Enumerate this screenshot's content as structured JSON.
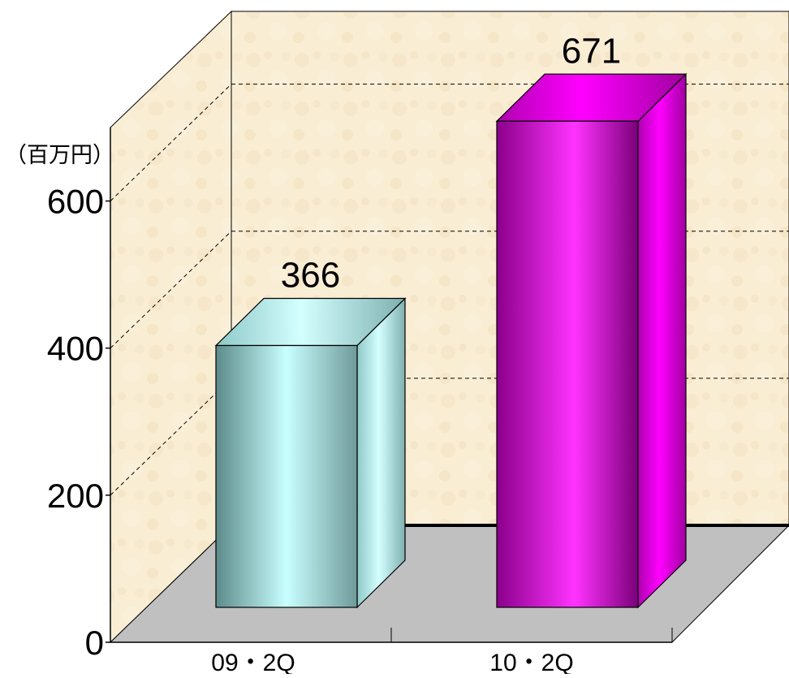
{
  "chart_data": {
    "type": "bar",
    "variant": "3d-column",
    "unit_label": "（百万円）",
    "categories": [
      "09・2Q",
      "10・2Q"
    ],
    "values": [
      366,
      671
    ],
    "data_labels": [
      "366",
      "671"
    ],
    "yticks": [
      "0",
      "200",
      "400",
      "600"
    ],
    "ylim": [
      0,
      700
    ],
    "grid": true,
    "legend": "none",
    "colors": {
      "bar_1": "#aeeeee",
      "bar_2": "#ee00ee",
      "back_wall": "#f7ebd1",
      "floor": "#c0c0c0"
    }
  }
}
